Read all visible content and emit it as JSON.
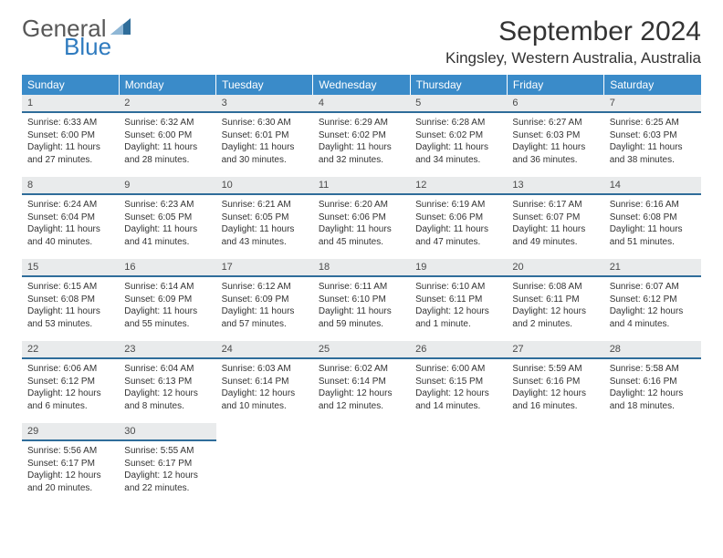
{
  "logo": {
    "general": "General",
    "blue": "Blue",
    "sail_color": "#2f6d9a"
  },
  "title": "September 2024",
  "location": "Kingsley, Western Australia, Australia",
  "colors": {
    "header_bg": "#3a8bc9",
    "header_text": "#ffffff",
    "daynum_bg": "#e9ebec",
    "daynum_border": "#2f6d9a",
    "body_text": "#333333"
  },
  "day_names": [
    "Sunday",
    "Monday",
    "Tuesday",
    "Wednesday",
    "Thursday",
    "Friday",
    "Saturday"
  ],
  "weeks": [
    [
      {
        "n": "1",
        "sr": "6:33 AM",
        "ss": "6:00 PM",
        "dl": "11 hours and 27 minutes."
      },
      {
        "n": "2",
        "sr": "6:32 AM",
        "ss": "6:00 PM",
        "dl": "11 hours and 28 minutes."
      },
      {
        "n": "3",
        "sr": "6:30 AM",
        "ss": "6:01 PM",
        "dl": "11 hours and 30 minutes."
      },
      {
        "n": "4",
        "sr": "6:29 AM",
        "ss": "6:02 PM",
        "dl": "11 hours and 32 minutes."
      },
      {
        "n": "5",
        "sr": "6:28 AM",
        "ss": "6:02 PM",
        "dl": "11 hours and 34 minutes."
      },
      {
        "n": "6",
        "sr": "6:27 AM",
        "ss": "6:03 PM",
        "dl": "11 hours and 36 minutes."
      },
      {
        "n": "7",
        "sr": "6:25 AM",
        "ss": "6:03 PM",
        "dl": "11 hours and 38 minutes."
      }
    ],
    [
      {
        "n": "8",
        "sr": "6:24 AM",
        "ss": "6:04 PM",
        "dl": "11 hours and 40 minutes."
      },
      {
        "n": "9",
        "sr": "6:23 AM",
        "ss": "6:05 PM",
        "dl": "11 hours and 41 minutes."
      },
      {
        "n": "10",
        "sr": "6:21 AM",
        "ss": "6:05 PM",
        "dl": "11 hours and 43 minutes."
      },
      {
        "n": "11",
        "sr": "6:20 AM",
        "ss": "6:06 PM",
        "dl": "11 hours and 45 minutes."
      },
      {
        "n": "12",
        "sr": "6:19 AM",
        "ss": "6:06 PM",
        "dl": "11 hours and 47 minutes."
      },
      {
        "n": "13",
        "sr": "6:17 AM",
        "ss": "6:07 PM",
        "dl": "11 hours and 49 minutes."
      },
      {
        "n": "14",
        "sr": "6:16 AM",
        "ss": "6:08 PM",
        "dl": "11 hours and 51 minutes."
      }
    ],
    [
      {
        "n": "15",
        "sr": "6:15 AM",
        "ss": "6:08 PM",
        "dl": "11 hours and 53 minutes."
      },
      {
        "n": "16",
        "sr": "6:14 AM",
        "ss": "6:09 PM",
        "dl": "11 hours and 55 minutes."
      },
      {
        "n": "17",
        "sr": "6:12 AM",
        "ss": "6:09 PM",
        "dl": "11 hours and 57 minutes."
      },
      {
        "n": "18",
        "sr": "6:11 AM",
        "ss": "6:10 PM",
        "dl": "11 hours and 59 minutes."
      },
      {
        "n": "19",
        "sr": "6:10 AM",
        "ss": "6:11 PM",
        "dl": "12 hours and 1 minute."
      },
      {
        "n": "20",
        "sr": "6:08 AM",
        "ss": "6:11 PM",
        "dl": "12 hours and 2 minutes."
      },
      {
        "n": "21",
        "sr": "6:07 AM",
        "ss": "6:12 PM",
        "dl": "12 hours and 4 minutes."
      }
    ],
    [
      {
        "n": "22",
        "sr": "6:06 AM",
        "ss": "6:12 PM",
        "dl": "12 hours and 6 minutes."
      },
      {
        "n": "23",
        "sr": "6:04 AM",
        "ss": "6:13 PM",
        "dl": "12 hours and 8 minutes."
      },
      {
        "n": "24",
        "sr": "6:03 AM",
        "ss": "6:14 PM",
        "dl": "12 hours and 10 minutes."
      },
      {
        "n": "25",
        "sr": "6:02 AM",
        "ss": "6:14 PM",
        "dl": "12 hours and 12 minutes."
      },
      {
        "n": "26",
        "sr": "6:00 AM",
        "ss": "6:15 PM",
        "dl": "12 hours and 14 minutes."
      },
      {
        "n": "27",
        "sr": "5:59 AM",
        "ss": "6:16 PM",
        "dl": "12 hours and 16 minutes."
      },
      {
        "n": "28",
        "sr": "5:58 AM",
        "ss": "6:16 PM",
        "dl": "12 hours and 18 minutes."
      }
    ],
    [
      {
        "n": "29",
        "sr": "5:56 AM",
        "ss": "6:17 PM",
        "dl": "12 hours and 20 minutes."
      },
      {
        "n": "30",
        "sr": "5:55 AM",
        "ss": "6:17 PM",
        "dl": "12 hours and 22 minutes."
      },
      null,
      null,
      null,
      null,
      null
    ]
  ],
  "labels": {
    "sunrise": "Sunrise: ",
    "sunset": "Sunset: ",
    "daylight": "Daylight: "
  }
}
